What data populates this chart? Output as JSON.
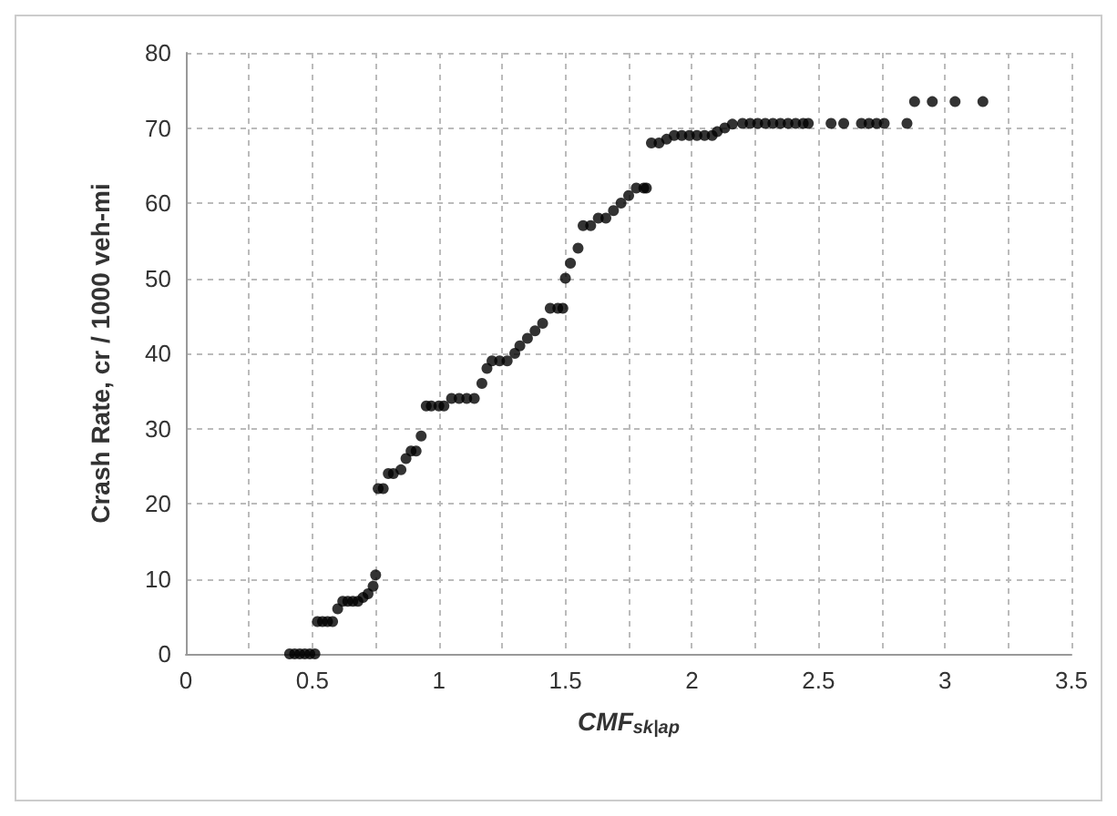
{
  "chart_data": {
    "type": "scatter",
    "xlabel": "CMF$_{sk|ap}$",
    "ylabel": "Crash Rate, cr / 1000 veh-mi",
    "x": [
      0.41,
      0.43,
      0.45,
      0.47,
      0.49,
      0.51,
      0.52,
      0.54,
      0.56,
      0.58,
      0.6,
      0.62,
      0.64,
      0.66,
      0.68,
      0.7,
      0.72,
      0.74,
      0.75,
      0.76,
      0.78,
      0.8,
      0.82,
      0.85,
      0.87,
      0.89,
      0.91,
      0.93,
      0.95,
      0.97,
      1.0,
      1.02,
      1.05,
      1.08,
      1.11,
      1.14,
      1.17,
      1.19,
      1.21,
      1.24,
      1.27,
      1.3,
      1.32,
      1.35,
      1.38,
      1.41,
      1.44,
      1.47,
      1.49,
      1.5,
      1.52,
      1.55,
      1.57,
      1.6,
      1.63,
      1.66,
      1.69,
      1.72,
      1.75,
      1.78,
      1.81,
      1.82,
      1.84,
      1.87,
      1.9,
      1.93,
      1.96,
      1.99,
      2.02,
      2.05,
      2.08,
      2.1,
      2.13,
      2.16,
      2.2,
      2.23,
      2.26,
      2.29,
      2.32,
      2.35,
      2.38,
      2.41,
      2.44,
      2.46,
      2.55,
      2.6,
      2.67,
      2.7,
      2.73,
      2.76,
      2.85,
      2.88,
      2.95,
      3.04,
      3.15
    ],
    "values": [
      0,
      0,
      0,
      0,
      0,
      0,
      4.3,
      4.3,
      4.3,
      4.3,
      6,
      7,
      7,
      7,
      7,
      7.5,
      8,
      9,
      10.5,
      22,
      22,
      24,
      24,
      24.5,
      26,
      27,
      27,
      29,
      33,
      33,
      33,
      33,
      34,
      34,
      34,
      34,
      36,
      38,
      39,
      39,
      39,
      40,
      41,
      42,
      43,
      44,
      46,
      46,
      46,
      50,
      52,
      54,
      57,
      57,
      58,
      58,
      59,
      60,
      61,
      62,
      62,
      62,
      68,
      68,
      68.5,
      69,
      69,
      69,
      69,
      69,
      69,
      69.5,
      70,
      70.5,
      70.6,
      70.6,
      70.6,
      70.6,
      70.6,
      70.6,
      70.6,
      70.6,
      70.6,
      70.6,
      70.6,
      70.6,
      70.6,
      70.6,
      70.6,
      70.6,
      70.6,
      73.5,
      73.5,
      73.5,
      73.5
    ],
    "color": "#000000",
    "marker": "circle",
    "grid": true,
    "xlim": [
      0,
      3.5
    ],
    "xticks": [
      0,
      0.5,
      1,
      1.5,
      2,
      2.5,
      3,
      3.5
    ],
    "ylim": [
      0,
      80
    ],
    "yticks": [
      0,
      10,
      20,
      30,
      40,
      50,
      60,
      70,
      80
    ]
  }
}
